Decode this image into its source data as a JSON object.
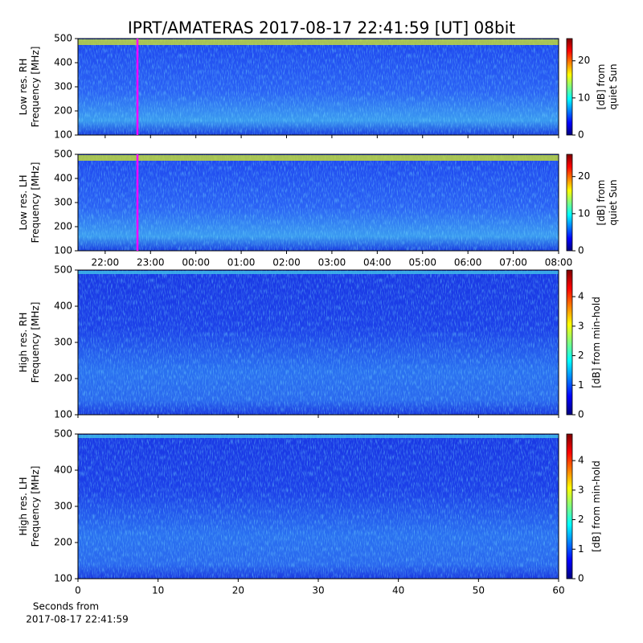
{
  "title": "IPRT/AMATERAS 2017-08-17 22:41:59 [UT]   08bit",
  "chart_data": [
    {
      "type": "heatmap",
      "ylabel": [
        "Low res. RH",
        "Frequency [MHz]"
      ],
      "ylim": [
        100,
        500
      ],
      "yticks": [
        100,
        200,
        300,
        400,
        500
      ],
      "xlim": [
        "21:24",
        "08:00"
      ],
      "xticks": [
        "22:00",
        "23:00",
        "00:00",
        "01:00",
        "02:00",
        "03:00",
        "04:00",
        "05:00",
        "06:00",
        "07:00",
        "08:00"
      ],
      "xticklabels": false,
      "colormap": "jet",
      "clim": [
        0,
        26
      ],
      "cticks": [
        0,
        10,
        20
      ],
      "clabel": [
        "[dB] from",
        "quiet Sun"
      ]
    },
    {
      "type": "heatmap",
      "ylabel": [
        "Low res. LH",
        "Frequency [MHz]"
      ],
      "ylim": [
        100,
        500
      ],
      "yticks": [
        100,
        200,
        300,
        400,
        500
      ],
      "xlim": [
        "21:24",
        "08:00"
      ],
      "xticks": [
        "22:00",
        "23:00",
        "00:00",
        "01:00",
        "02:00",
        "03:00",
        "04:00",
        "05:00",
        "06:00",
        "07:00",
        "08:00"
      ],
      "xticklabels": true,
      "colormap": "jet",
      "clim": [
        0,
        26
      ],
      "cticks": [
        0,
        10,
        20
      ],
      "clabel": [
        "[dB] from",
        "quiet Sun"
      ]
    },
    {
      "type": "heatmap",
      "ylabel": [
        "High res. RH",
        "Frequency [MHz]"
      ],
      "ylim": [
        100,
        500
      ],
      "yticks": [
        100,
        200,
        300,
        400,
        500
      ],
      "xlim": [
        0,
        60
      ],
      "xticks": [
        0,
        10,
        20,
        30,
        40,
        50,
        60
      ],
      "xticklabels": false,
      "colormap": "jet",
      "clim": [
        0,
        4.9
      ],
      "cticks": [
        0,
        1,
        2,
        3,
        4
      ],
      "clabel": [
        "[dB] from min-hold"
      ]
    },
    {
      "type": "heatmap",
      "ylabel": [
        "High res. LH",
        "Frequency [MHz]"
      ],
      "ylim": [
        100,
        500
      ],
      "yticks": [
        100,
        200,
        300,
        400,
        500
      ],
      "xlim": [
        0,
        60
      ],
      "xticks": [
        0,
        10,
        20,
        30,
        40,
        50,
        60
      ],
      "xticklabels": true,
      "xlabel": [
        "Seconds from",
        "2017-08-17 22:41:59"
      ],
      "colormap": "jet",
      "clim": [
        0,
        4.9
      ],
      "cticks": [
        0,
        1,
        2,
        3,
        4
      ],
      "clabel": [
        "[dB] from min-hold"
      ]
    }
  ]
}
